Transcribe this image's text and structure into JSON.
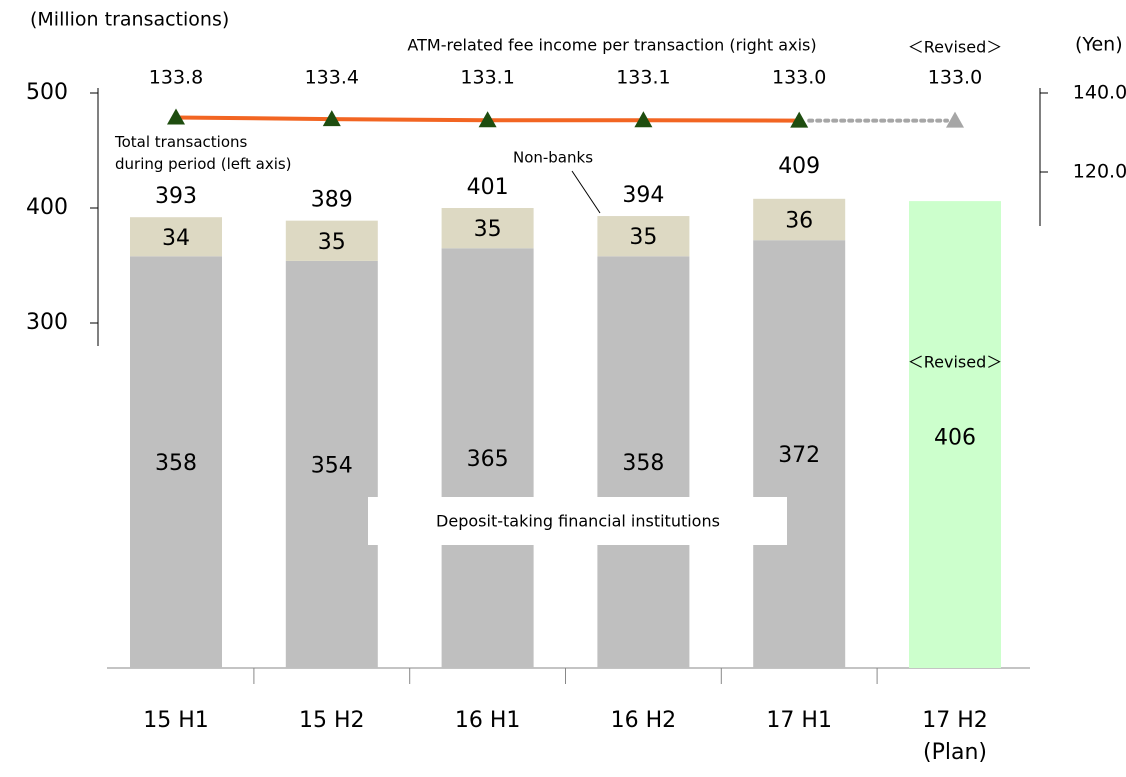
{
  "chart_data": {
    "type": "bar",
    "stacked": true,
    "y_axis_label": "(Million transactions)",
    "y2_axis_label": "(Yen)",
    "categories": [
      "15 H1",
      "15 H2",
      "16 H1",
      "16 H2",
      "17 H1",
      "17 H2\n(Plan)"
    ],
    "ylim": [
      0,
      500
    ],
    "yticks": [
      300,
      400,
      500
    ],
    "y2lim": [
      100,
      140
    ],
    "y2ticks": [
      {
        "value": 140,
        "label": "140.0"
      },
      {
        "value": 120,
        "label": "120.0"
      }
    ],
    "series": [
      {
        "name": "Deposit-taking financial institutions",
        "color": "#bfbfbf",
        "values": [
          358,
          354,
          365,
          358,
          372,
          null
        ]
      },
      {
        "name": "Non-banks",
        "color": "#ddd9c3",
        "values": [
          34,
          35,
          35,
          35,
          36,
          null
        ]
      },
      {
        "color": "#ccffcc",
        "values": [
          null,
          null,
          null,
          null,
          null,
          406
        ]
      },
      {
        "name": "ATM-related fee income per transaction (right axis)",
        "type": "line",
        "axis": "y2",
        "color": "#f26522",
        "marker_color": "#1e4d0f",
        "projection_color": "#a6a6a6",
        "values": [
          133.8,
          133.4,
          133.1,
          133.1,
          133.0,
          133.0
        ],
        "value_labels": [
          "133.8",
          "133.4",
          "133.1",
          "133.1",
          "133.0",
          "133.0"
        ]
      }
    ],
    "totals": {
      "name": "Total transactions\nduring period (left axis)",
      "values": [
        393,
        389,
        401,
        394,
        409,
        null
      ]
    },
    "annotations": [
      "＜Revised＞",
      "＜Revised＞"
    ]
  }
}
